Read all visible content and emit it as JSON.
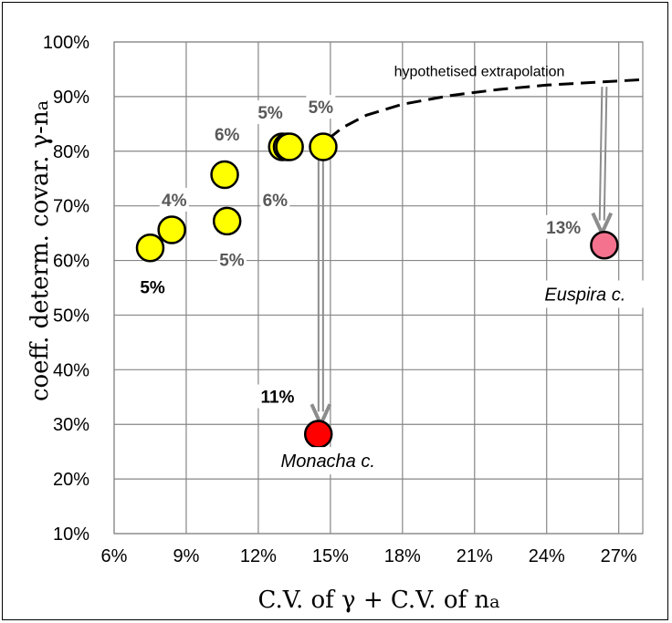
{
  "chart_data": {
    "type": "scatter",
    "title": "",
    "xlabel_parts": [
      "C.V. of ",
      "γ",
      " + C.V. of n",
      "a"
    ],
    "ylabel_parts": [
      "coeff. determ. covar. ",
      "γ",
      "-n",
      "a"
    ],
    "xlim": [
      0.06,
      0.28
    ],
    "ylim": [
      0.1,
      1.0
    ],
    "x_ticks": [
      {
        "value": 0.06,
        "label": "6%"
      },
      {
        "value": 0.09,
        "label": "9%"
      },
      {
        "value": 0.12,
        "label": "12%"
      },
      {
        "value": 0.15,
        "label": "15%"
      },
      {
        "value": 0.18,
        "label": "18%"
      },
      {
        "value": 0.21,
        "label": "21%"
      },
      {
        "value": 0.24,
        "label": "24%"
      },
      {
        "value": 0.27,
        "label": "27%"
      }
    ],
    "y_ticks": [
      {
        "value": 0.1,
        "label": "10%"
      },
      {
        "value": 0.2,
        "label": "20%"
      },
      {
        "value": 0.3,
        "label": "30%"
      },
      {
        "value": 0.4,
        "label": "40%"
      },
      {
        "value": 0.5,
        "label": "50%"
      },
      {
        "value": 0.6,
        "label": "60%"
      },
      {
        "value": 0.7,
        "label": "70%"
      },
      {
        "value": 0.8,
        "label": "80%"
      },
      {
        "value": 0.9,
        "label": "90%"
      },
      {
        "value": 1.0,
        "label": "100%"
      }
    ],
    "grid": true,
    "points": [
      {
        "x": 0.075,
        "y": 0.623,
        "color": "#ffff00"
      },
      {
        "x": 0.084,
        "y": 0.656,
        "color": "#ffff00"
      },
      {
        "x": 0.106,
        "y": 0.757,
        "color": "#ffff00"
      },
      {
        "x": 0.107,
        "y": 0.672,
        "color": "#ffff00"
      },
      {
        "x": 0.13,
        "y": 0.808,
        "color": "#ffff00"
      },
      {
        "x": 0.132,
        "y": 0.808,
        "color": "#ffff00"
      },
      {
        "x": 0.133,
        "y": 0.808,
        "color": "#ffff00"
      },
      {
        "x": 0.147,
        "y": 0.808,
        "color": "#ffff00"
      },
      {
        "x": 0.145,
        "y": 0.282,
        "color": "#ff0000"
      },
      {
        "x": 0.264,
        "y": 0.628,
        "color": "#f5728f"
      }
    ],
    "point_labels": [
      {
        "text": "5%",
        "x": 0.076,
        "y": 0.543,
        "color": "#000000"
      },
      {
        "text": "4%",
        "x": 0.085,
        "y": 0.703,
        "color": "#595959"
      },
      {
        "text": "6%",
        "x": 0.107,
        "y": 0.823,
        "color": "#595959"
      },
      {
        "text": "5%",
        "x": 0.109,
        "y": 0.593,
        "color": "#595959"
      },
      {
        "text": "5%",
        "x": 0.125,
        "y": 0.863,
        "color": "#595959"
      },
      {
        "text": "6%",
        "x": 0.127,
        "y": 0.703,
        "color": "#595959"
      },
      {
        "text": "5%",
        "x": 0.146,
        "y": 0.873,
        "color": "#595959"
      },
      {
        "text": "11%",
        "x": 0.128,
        "y": 0.343,
        "color": "#000000"
      },
      {
        "text": "13%",
        "x": 0.247,
        "y": 0.653,
        "color": "#595959"
      }
    ],
    "species_labels": [
      {
        "text": "Monacha c.",
        "x": 0.149,
        "y": 0.225
      },
      {
        "text": "Euspira c.",
        "x": 0.256,
        "y": 0.53
      }
    ],
    "extrapolation": {
      "label": "hypothetised  extrapolation",
      "label_x": 0.212,
      "label_y": 0.937,
      "curve": [
        {
          "x": 0.149,
          "y": 0.822
        },
        {
          "x": 0.155,
          "y": 0.843
        },
        {
          "x": 0.165,
          "y": 0.866
        },
        {
          "x": 0.18,
          "y": 0.886
        },
        {
          "x": 0.2,
          "y": 0.902
        },
        {
          "x": 0.22,
          "y": 0.913
        },
        {
          "x": 0.24,
          "y": 0.921
        },
        {
          "x": 0.26,
          "y": 0.926
        },
        {
          "x": 0.28,
          "y": 0.931
        }
      ]
    },
    "arrows": [
      {
        "from": {
          "x": 0.146,
          "y": 0.795
        },
        "to": {
          "x": 0.146,
          "y": 0.3
        }
      },
      {
        "from": {
          "x": 0.264,
          "y": 0.918
        },
        "to": {
          "x": 0.263,
          "y": 0.65
        }
      }
    ],
    "colors": {
      "yellow": "#ffff00",
      "red": "#ff0000",
      "pink": "#f5728f",
      "arrow": "#8c8c8c",
      "grid": "#868686"
    }
  }
}
